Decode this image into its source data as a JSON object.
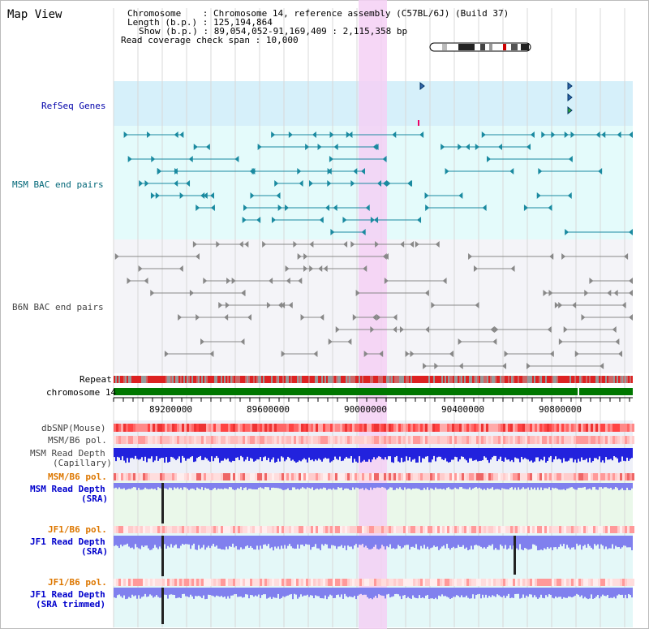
{
  "view_title": "Map View",
  "info": {
    "chromosome_label": "Chromosome",
    "chromosome_value": "Chromosome 14, reference assembly (C57BL/6J) (Build 37)",
    "length_label": "Length (b.p.)",
    "length_value": "125,194,864",
    "show_label": "Show (b.p.)",
    "show_value": "89,054,052-91,169,409 : 2,115,358 bp",
    "coverage_label": "Read coverage check span",
    "coverage_value": "10,000"
  },
  "tracks": {
    "refseq": "RefSeq Genes",
    "msm_bac": "MSM BAC end pairs",
    "b6n_bac": "B6N BAC end pairs",
    "repeat": "Repeat",
    "chromosome": "chromosome 14",
    "dbsnp": "dbSNP(Mouse)",
    "msm_b6_pol_1": "MSM/B6 pol.",
    "msm_depth_cap_1": "MSM Read Depth",
    "msm_depth_cap_2": "(Capillary)",
    "msm_b6_pol_2": "MSM/B6 pol.",
    "msm_depth_sra_1": "MSM Read Depth",
    "msm_depth_sra_2": "(SRA)",
    "jf1_b6_pol_1": "JF1/B6 pol.",
    "jf1_depth_sra_1": "JF1 Read Depth",
    "jf1_depth_sra_2": "(SRA)",
    "jf1_b6_pol_2": "JF1/B6 pol.",
    "jf1_depth_trim_1": "JF1 Read Depth",
    "jf1_depth_trim_2": "(SRA trimmed)"
  },
  "axis_ticks": [
    "89200000",
    "89600000",
    "90000000",
    "90400000",
    "90800000"
  ],
  "colors": {
    "refseq_label": "#0000aa",
    "msm_bac_label": "#006677",
    "b6n_bac_label": "#444444",
    "sra_label": "#0000cc",
    "pol_label": "#dd7700",
    "highlight": "#f5d0f5",
    "refseq_bg": "#d6f0fa",
    "bac_bg": "#e4fbfb",
    "chromosome_bar": "#007700",
    "depth_blue": "#2222dd",
    "depth_light": "#8080ee"
  }
}
